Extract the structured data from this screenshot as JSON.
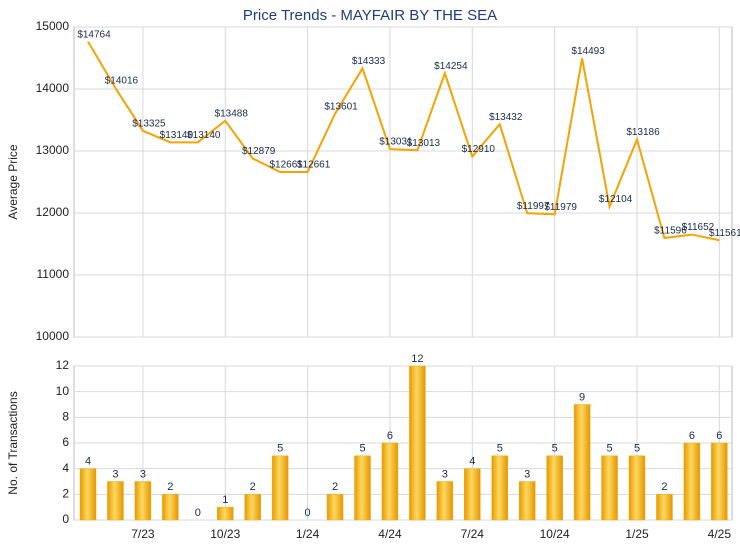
{
  "chart_data": [
    {
      "type": "line",
      "title": "Price Trends - MAYFAIR BY THE SEA",
      "y_label": "Average Price",
      "values": [
        14764,
        14016,
        13325,
        13140,
        13140,
        13488,
        12879,
        12661,
        12661,
        13601,
        14333,
        13031,
        13013,
        14254,
        12910,
        13432,
        11997,
        11979,
        14493,
        12104,
        13186,
        11596,
        11652,
        11561
      ],
      "value_labels": [
        "$14764",
        "$14016",
        "$13325",
        "$13140",
        "$13140",
        "$13488",
        "$12879",
        "$12661",
        "$12661",
        "$13601",
        "$14333",
        "$13031",
        "$13013",
        "$14254",
        "$12910",
        "$13432",
        "$11997",
        "$11979",
        "$14493",
        "$12104",
        "$13186",
        "$11596",
        "$11652",
        "$11561"
      ],
      "color": "#f5a300",
      "ylim": [
        10000,
        15000
      ],
      "yticks": [
        10000,
        11000,
        12000,
        13000,
        14000,
        15000
      ],
      "grid": true
    },
    {
      "type": "bar",
      "y_label": "No. of Transactions",
      "categories": [
        null,
        null,
        "7/23",
        null,
        null,
        "10/23",
        null,
        null,
        "1/24",
        null,
        null,
        "4/24",
        null,
        null,
        "7/24",
        null,
        null,
        "10/24",
        null,
        null,
        "1/25",
        null,
        null,
        "4/25"
      ],
      "values": [
        4,
        3,
        3,
        2,
        0,
        1,
        2,
        5,
        0,
        2,
        5,
        6,
        12,
        3,
        4,
        5,
        3,
        5,
        9,
        5,
        5,
        2,
        6,
        6
      ],
      "color": "#f2ab10",
      "ylim": [
        0,
        12
      ],
      "yticks": [
        0,
        2,
        4,
        6,
        8,
        10,
        12
      ],
      "grid": true
    }
  ]
}
